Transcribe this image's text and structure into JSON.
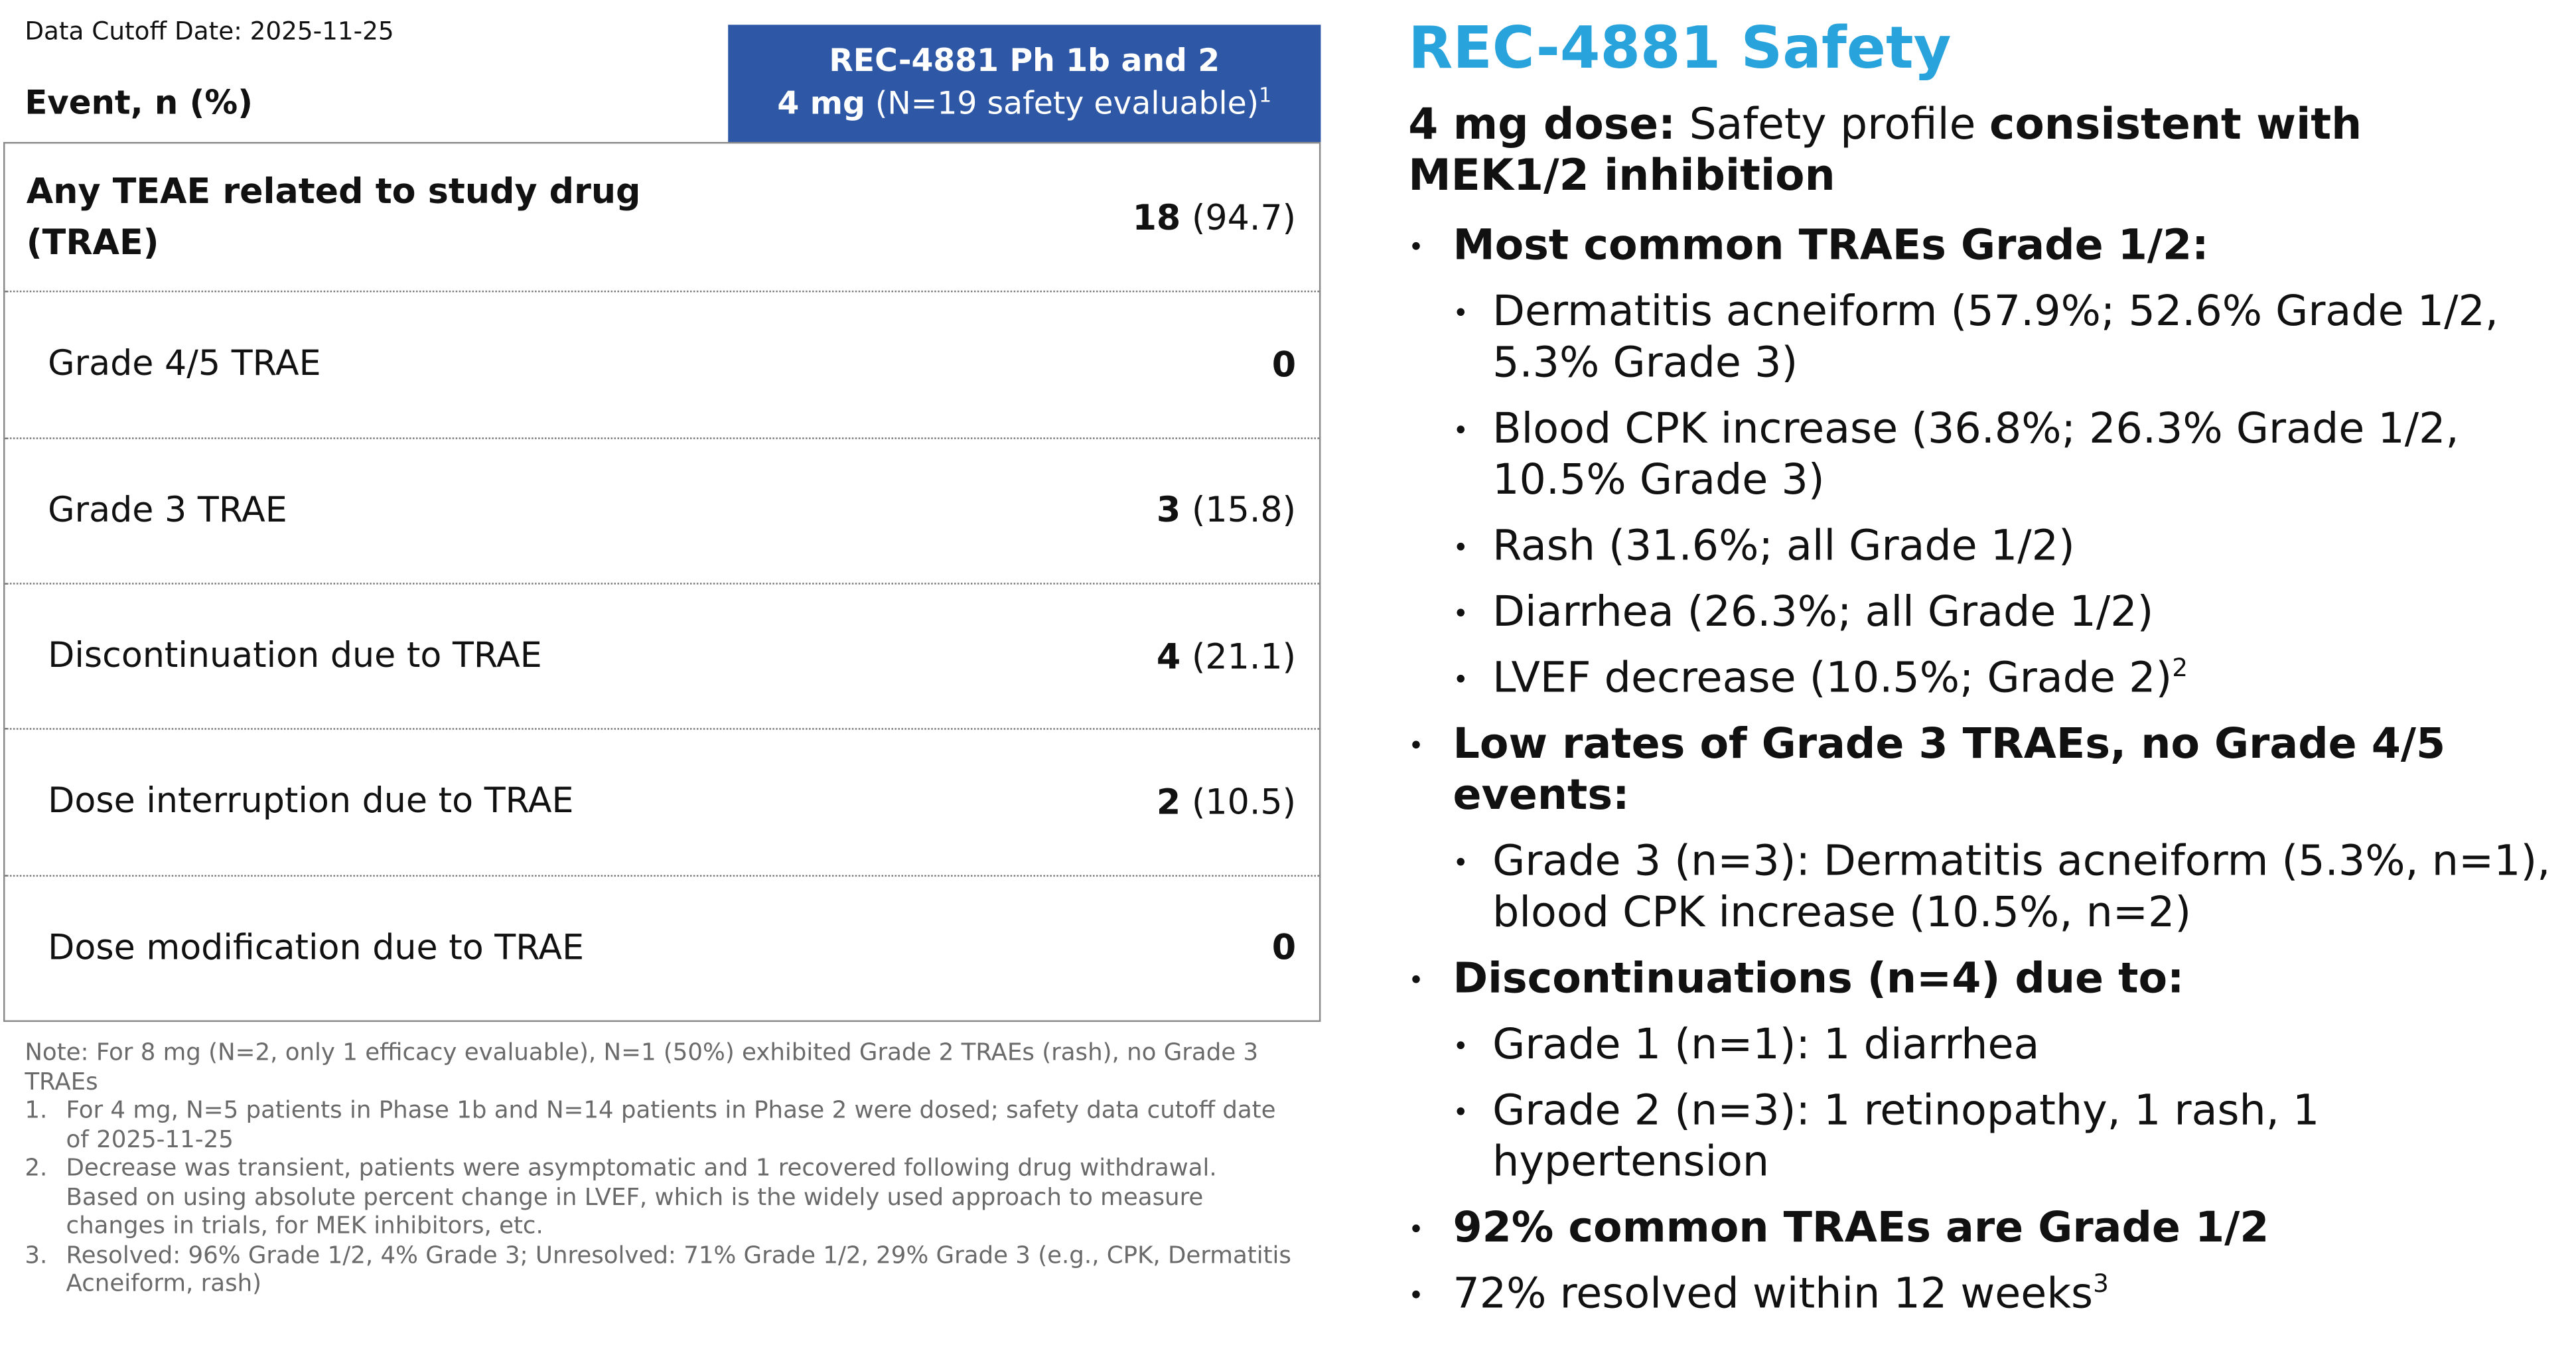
{
  "data_cutoff": "Data Cutoff Date: 2025-11-25",
  "table": {
    "event_header": "Event, n (%)",
    "column_header": {
      "line1": "REC-4881 Ph 1b and 2",
      "dose": "4 mg",
      "population": "(N=19 safety evaluable)",
      "superscript": "1"
    },
    "rows": [
      {
        "label": "Any TEAE related to study drug (TRAE)",
        "count": "18",
        "percent": "(94.7)"
      },
      {
        "label": "Grade 4/5 TRAE",
        "count": "0"
      },
      {
        "label": "Grade 3 TRAE",
        "count": "3",
        "percent": "(15.8)"
      },
      {
        "label": "Discontinuation due to TRAE",
        "count": "4",
        "percent": "(21.1)"
      },
      {
        "label": "Dose interruption due to TRAE",
        "count": "2",
        "percent": "(10.5)"
      },
      {
        "label": "Dose modification due to TRAE",
        "count": "0"
      }
    ]
  },
  "notes": {
    "note": "Note: For 8 mg (N=2, only 1 efficacy evaluable), N=1 (50%) exhibited Grade 2 TRAEs (rash), no Grade 3 TRAEs",
    "footnotes": [
      {
        "number": "1.",
        "text": "For 4 mg, N=5 patients in Phase 1b and N=14 patients in Phase 2 were dosed; safety data cutoff date of 2025-11-25"
      },
      {
        "number": "2.",
        "text": "Decrease was transient, patients were asymptomatic and 1 recovered following drug withdrawal. Based on using absolute percent change in LVEF, which is the widely used approach to measure changes in trials, for MEK inhibitors, etc."
      },
      {
        "number": "3.",
        "text": "Resolved: 96% Grade 1/2, 4% Grade 3; Unresolved: 71% Grade 1/2, 29% Grade 3 (e.g., CPK, Dermatitis Acneiform, rash)"
      }
    ]
  },
  "right": {
    "title": "REC-4881 Safety",
    "intro": {
      "bold": "4 mg dose:",
      "normal": "Safety profile",
      "bold2": "consistent with MEK1/2 inhibition"
    },
    "bullets": [
      {
        "text": "Most common TRAEs Grade 1/2:",
        "bold": true,
        "children": [
          {
            "text": "Dermatitis acneiform (57.9%; 52.6% Grade 1/2, 5.3% Grade 3)"
          },
          {
            "text": "Blood CPK increase (36.8%; 26.3% Grade 1/2, 10.5% Grade 3)"
          },
          {
            "text": "Rash (31.6%; all Grade 1/2)"
          },
          {
            "text": "Diarrhea (26.3%; all Grade 1/2)"
          },
          {
            "text": "LVEF decrease (10.5%; Grade 2)",
            "sup": "2"
          }
        ]
      },
      {
        "text": "Low rates of Grade 3 TRAEs, no Grade 4/5 events:",
        "bold": true,
        "children": [
          {
            "text": "Grade 3 (n=3): Dermatitis acneiform (5.3%, n=1), blood CPK increase (10.5%, n=2)"
          }
        ]
      },
      {
        "text": "Discontinuations (n=4) due to:",
        "bold": true,
        "children": [
          {
            "text": "Grade 1 (n=1): 1 diarrhea"
          },
          {
            "text": "Grade 2 (n=3): 1 retinopathy, 1 rash, 1 hypertension"
          }
        ]
      },
      {
        "text": "92% common TRAEs are Grade 1/2",
        "bold": true
      },
      {
        "text": "72% resolved within 12 weeks",
        "bold": false,
        "sup": "3"
      }
    ]
  }
}
